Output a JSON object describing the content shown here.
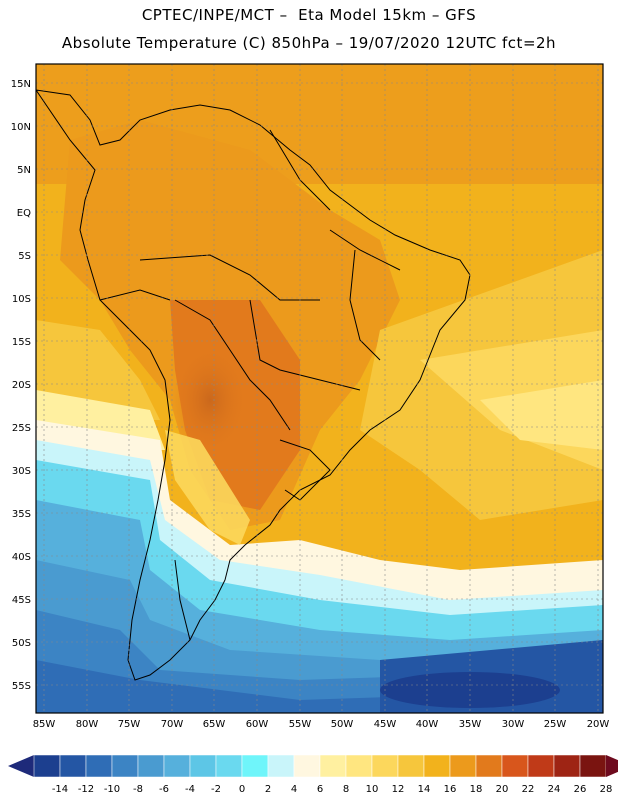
{
  "header": {
    "line1": "CPTEC/INPE/MCT –  Eta Model 15km – GFS",
    "line2": "Absolute Temperature (C) 850hPa – 19/07/2020 12UTC fct=2h"
  },
  "axes": {
    "lat_labels": [
      "15N",
      "10N",
      "5N",
      "EQ",
      "5S",
      "10S",
      "15S",
      "20S",
      "25S",
      "30S",
      "35S",
      "40S",
      "45S",
      "50S",
      "55S"
    ],
    "lon_labels": [
      "85W",
      "80W",
      "75W",
      "70W",
      "65W",
      "60W",
      "55W",
      "50W",
      "45W",
      "40W",
      "35W",
      "30W",
      "25W",
      "20W"
    ]
  },
  "colorbar": {
    "tick_labels": [
      "-14",
      "-12",
      "-10",
      "-8",
      "-6",
      "-4",
      "-2",
      "0",
      "2",
      "4",
      "6",
      "8",
      "10",
      "12",
      "14",
      "16",
      "18",
      "20",
      "22",
      "24",
      "26",
      "28"
    ],
    "colors": [
      "#1c3f8f",
      "#2456a4",
      "#2f6db6",
      "#3c84c4",
      "#4a9bd0",
      "#56b0dc",
      "#5dc6e6",
      "#6ad9ef",
      "#6ff5fa",
      "#c9f5fa",
      "#fff7e0",
      "#fff0a0",
      "#ffe680",
      "#fcd75c",
      "#f6c63c",
      "#f2b21c",
      "#ec9a1c",
      "#e27a1c",
      "#d8561c",
      "#c03a18",
      "#9e2414",
      "#7a1410"
    ],
    "under_color": "#1e2a7a",
    "over_color": "#6e0a1e"
  }
}
